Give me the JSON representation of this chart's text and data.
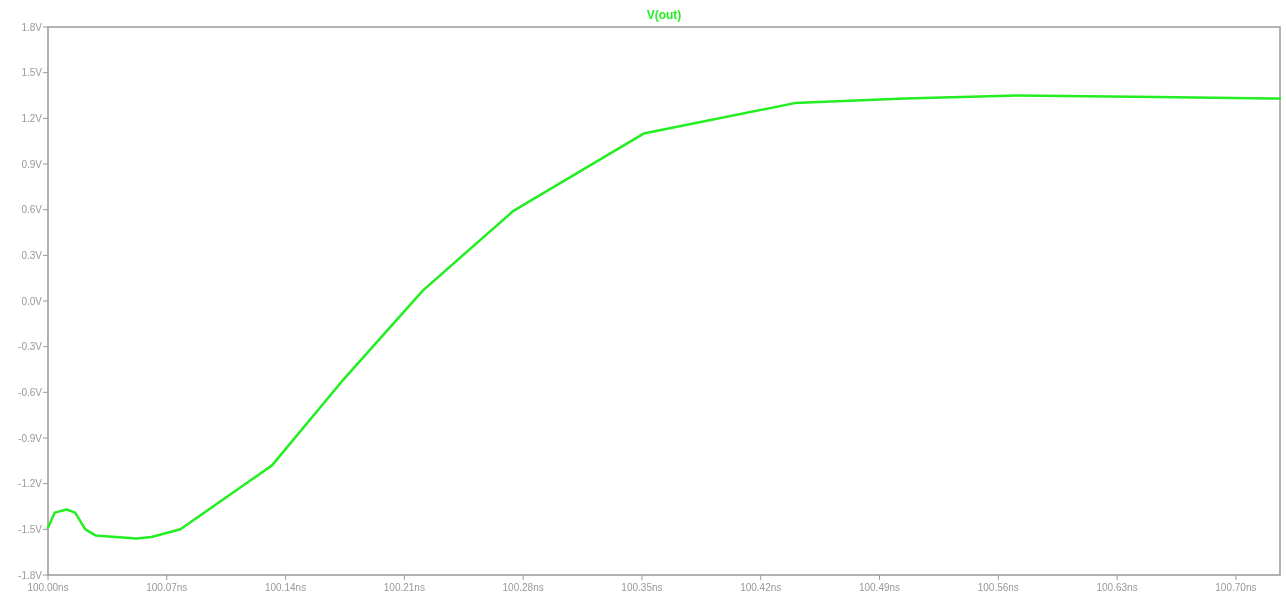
{
  "chart_data": {
    "type": "line",
    "legend": "top",
    "marker": "none",
    "line_style": "solid",
    "grid": false,
    "xlim": [
      100.0,
      100.726
    ],
    "ylim": [
      -1.8,
      1.8
    ],
    "xticks": [
      {
        "value": 100.0,
        "label": "100.00ns"
      },
      {
        "value": 100.07,
        "label": "100.07ns"
      },
      {
        "value": 100.14,
        "label": "100.14ns"
      },
      {
        "value": 100.21,
        "label": "100.21ns"
      },
      {
        "value": 100.28,
        "label": "100.28ns"
      },
      {
        "value": 100.35,
        "label": "100.35ns"
      },
      {
        "value": 100.42,
        "label": "100.42ns"
      },
      {
        "value": 100.49,
        "label": "100.49ns"
      },
      {
        "value": 100.56,
        "label": "100.56ns"
      },
      {
        "value": 100.63,
        "label": "100.63ns"
      },
      {
        "value": 100.7,
        "label": "100.70ns"
      }
    ],
    "yticks": [
      {
        "value": 1.8,
        "label": "1.8V"
      },
      {
        "value": 1.5,
        "label": "1.5V"
      },
      {
        "value": 1.2,
        "label": "1.2V"
      },
      {
        "value": 0.9,
        "label": "0.9V"
      },
      {
        "value": 0.6,
        "label": "0.6V"
      },
      {
        "value": 0.3,
        "label": "0.3V"
      },
      {
        "value": 0,
        "label": "0.0V"
      },
      {
        "value": -0.3,
        "label": "-0.3V"
      },
      {
        "value": -0.6,
        "label": "-0.6V"
      },
      {
        "value": -0.9,
        "label": "-0.9V"
      },
      {
        "value": -1.2,
        "label": "-1.2V"
      },
      {
        "value": -1.5,
        "label": "-1.5V"
      },
      {
        "value": -1.8,
        "label": "-1.8V"
      }
    ],
    "series": [
      {
        "name": "V(out)",
        "color": "#22ee22",
        "x": [
          100.0,
          100.004,
          100.011,
          100.016,
          100.022,
          100.028,
          100.052,
          100.061,
          100.078,
          100.132,
          100.173,
          100.221,
          100.274,
          100.351,
          100.44,
          100.505,
          100.571,
          100.653,
          100.726
        ],
        "values": [
          -1.49,
          -1.39,
          -1.37,
          -1.39,
          -1.5,
          -1.54,
          -1.56,
          -1.55,
          -1.5,
          -1.08,
          -0.53,
          0.07,
          0.59,
          1.1,
          1.3,
          1.33,
          1.35,
          1.34,
          1.33
        ]
      }
    ]
  }
}
